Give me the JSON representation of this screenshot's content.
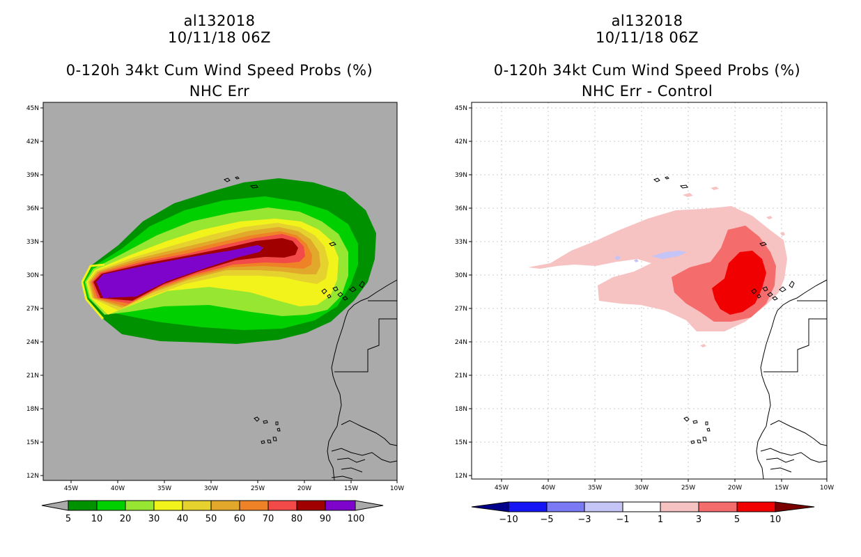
{
  "panels": [
    {
      "storm_id": "al132018",
      "datetime": "10/11/18 06Z",
      "product": "0-120h 34kt Cum Wind Speed Probs (%)",
      "subtitle": "NHC Err",
      "lat_labels": [
        "45N",
        "42N",
        "39N",
        "36N",
        "33N",
        "30N",
        "27N",
        "24N",
        "21N",
        "18N",
        "15N",
        "12N"
      ],
      "lon_labels": [
        "45W",
        "40W",
        "35W",
        "30W",
        "25W",
        "20W",
        "15W",
        "10W"
      ],
      "colorbar": {
        "labels": [
          "5",
          "10",
          "20",
          "30",
          "40",
          "50",
          "60",
          "70",
          "80",
          "90",
          "100"
        ],
        "colors": [
          "#009100",
          "#00d000",
          "#96e632",
          "#f3f31c",
          "#e5d22f",
          "#e1a82c",
          "#ef8226",
          "#f24a49",
          "#a00000",
          "#7e04cc"
        ]
      }
    },
    {
      "storm_id": "al132018",
      "datetime": "10/11/18 06Z",
      "product": "0-120h 34kt Cum Wind Speed Probs (%)",
      "subtitle": "NHC Err - Control",
      "lat_labels": [
        "45N",
        "42N",
        "39N",
        "36N",
        "33N",
        "30N",
        "27N",
        "24N",
        "21N",
        "18N",
        "15N",
        "12N"
      ],
      "lon_labels": [
        "45W",
        "40W",
        "35W",
        "30W",
        "25W",
        "20W",
        "15W",
        "10W"
      ],
      "colorbar": {
        "labels": [
          "−10",
          "−5",
          "−3",
          "−1",
          "1",
          "3",
          "5",
          "10"
        ],
        "colors": [
          "#00008b",
          "#1414f5",
          "#7a7af5",
          "#c4c4f7",
          "#ffffff",
          "#f7c2c2",
          "#f56c6c",
          "#f00000",
          "#7a0000"
        ]
      }
    }
  ]
}
